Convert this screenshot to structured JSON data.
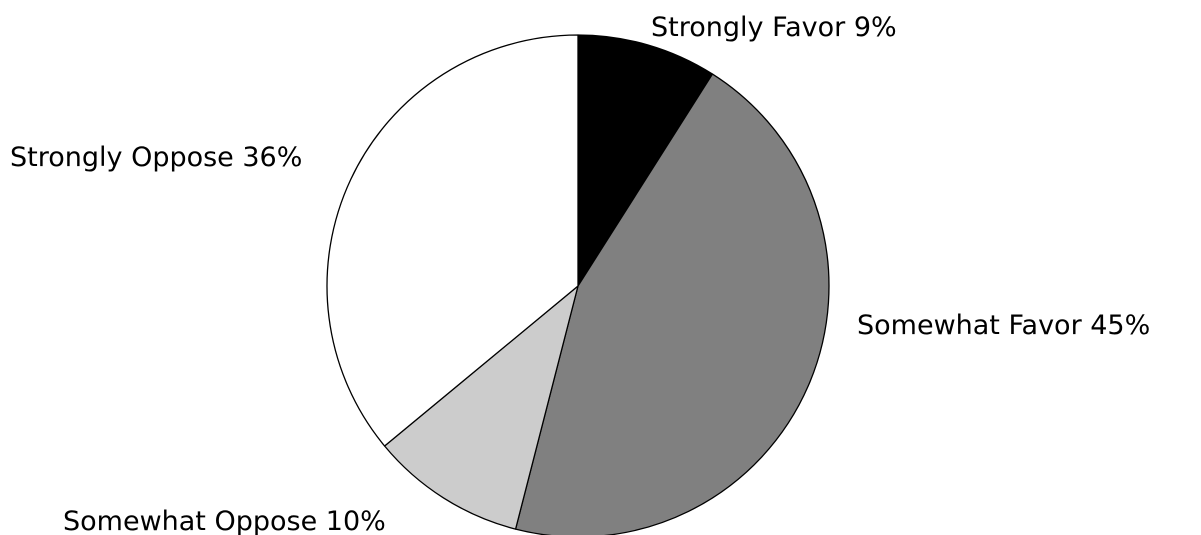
{
  "chart_data": {
    "type": "pie",
    "slices": [
      {
        "label": "Strongly Favor",
        "value": 9,
        "display": "Strongly Favor 9%",
        "color": "#000000"
      },
      {
        "label": "Somewhat Favor",
        "value": 45,
        "display": "Somewhat Favor 45%",
        "color": "#808080"
      },
      {
        "label": "Somewhat Oppose",
        "value": 10,
        "display": "Somewhat Oppose 10%",
        "color": "#cccccc"
      },
      {
        "label": "Strongly Oppose",
        "value": 36,
        "display": "Strongly Oppose 36%",
        "color": "#ffffff"
      }
    ],
    "start_angle": "12 o'clock",
    "direction": "clockwise",
    "legend": "none",
    "slice_outline_color": "#000000"
  }
}
